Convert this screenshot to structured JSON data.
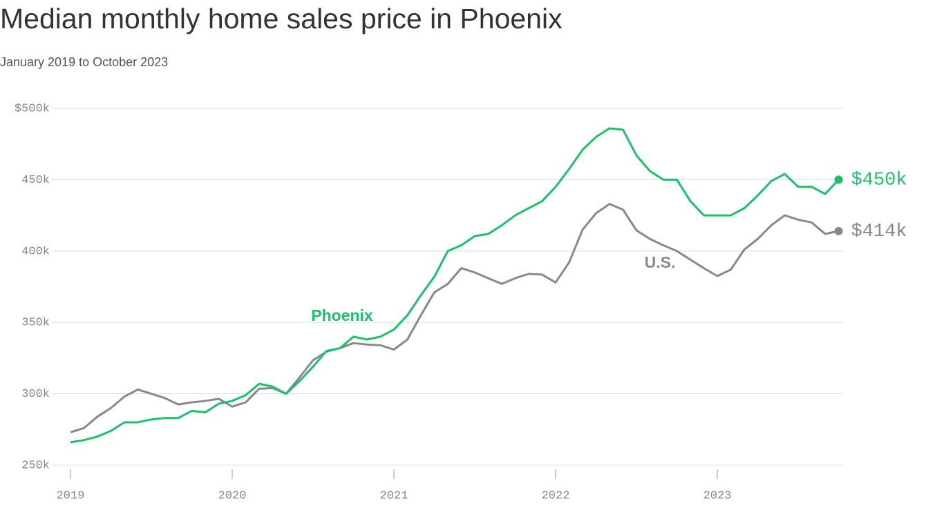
{
  "chart_data": {
    "type": "line",
    "title": "Median monthly home sales price in Phoenix",
    "subtitle": "January 2019 to October 2023",
    "x": [
      "2019-01",
      "2019-02",
      "2019-03",
      "2019-04",
      "2019-05",
      "2019-06",
      "2019-07",
      "2019-08",
      "2019-09",
      "2019-10",
      "2019-11",
      "2019-12",
      "2020-01",
      "2020-02",
      "2020-03",
      "2020-04",
      "2020-05",
      "2020-06",
      "2020-07",
      "2020-08",
      "2020-09",
      "2020-10",
      "2020-11",
      "2020-12",
      "2021-01",
      "2021-02",
      "2021-03",
      "2021-04",
      "2021-05",
      "2021-06",
      "2021-07",
      "2021-08",
      "2021-09",
      "2021-10",
      "2021-11",
      "2021-12",
      "2022-01",
      "2022-02",
      "2022-03",
      "2022-04",
      "2022-05",
      "2022-06",
      "2022-07",
      "2022-08",
      "2022-09",
      "2022-10",
      "2022-11",
      "2022-12",
      "2023-01",
      "2023-02",
      "2023-03",
      "2023-04",
      "2023-05",
      "2023-06",
      "2023-07",
      "2023-08",
      "2023-09",
      "2023-10"
    ],
    "series": [
      {
        "name": "Phoenix",
        "color": "#19c26b",
        "values": [
          266,
          267.5,
          270,
          274,
          280,
          280,
          282,
          283,
          283,
          288,
          287,
          293,
          295,
          299,
          307,
          305,
          300,
          309,
          319,
          330,
          332,
          340,
          338,
          340,
          345,
          355,
          369,
          382,
          400,
          404,
          410.5,
          412,
          418,
          425,
          430,
          435,
          445,
          457.5,
          471,
          480,
          486,
          485,
          467,
          456,
          450,
          450,
          435,
          425,
          425,
          425,
          430,
          439,
          449,
          454,
          445,
          445,
          440,
          450
        ],
        "value_labels": [
          null,
          null,
          null,
          null,
          null,
          null,
          null,
          null,
          null,
          null,
          null,
          null,
          null,
          null,
          null,
          null,
          null,
          null,
          null,
          null,
          null,
          null,
          null,
          null,
          null,
          null,
          null,
          null,
          null,
          null,
          null,
          null,
          null,
          null,
          null,
          null,
          null,
          null,
          null,
          null,
          null,
          null,
          null,
          null,
          null,
          null,
          null,
          null,
          null,
          null,
          null,
          null,
          null,
          null,
          null,
          null,
          null,
          "$450k"
        ]
      },
      {
        "name": "U.S.",
        "color": "#888888",
        "values": [
          273,
          276,
          284,
          290,
          298,
          303,
          300,
          297,
          292.5,
          294,
          295,
          296.5,
          291,
          294,
          303.5,
          304,
          300,
          311.5,
          323.5,
          329.5,
          332,
          335.5,
          334.5,
          334,
          331,
          338,
          355,
          371,
          377,
          388,
          385,
          381,
          377,
          381,
          384,
          383.5,
          378,
          392,
          415,
          426.5,
          433,
          429,
          414.5,
          408.5,
          404,
          400,
          394,
          388,
          382.5,
          387,
          401,
          408.5,
          418,
          425,
          422,
          420,
          412,
          414
        ],
        "value_labels": [
          null,
          null,
          null,
          null,
          null,
          null,
          null,
          null,
          null,
          null,
          null,
          null,
          null,
          null,
          null,
          null,
          null,
          null,
          null,
          null,
          null,
          null,
          null,
          null,
          null,
          null,
          null,
          null,
          null,
          null,
          null,
          null,
          null,
          null,
          null,
          null,
          null,
          null,
          null,
          null,
          null,
          null,
          null,
          null,
          null,
          null,
          null,
          null,
          null,
          null,
          null,
          null,
          null,
          null,
          null,
          null,
          null,
          "$414k"
        ]
      }
    ],
    "ylim": [
      250,
      500
    ],
    "yticks": [
      {
        "value": 250,
        "label": "250k"
      },
      {
        "value": 300,
        "label": "300k"
      },
      {
        "value": 350,
        "label": "350k"
      },
      {
        "value": 400,
        "label": "400k"
      },
      {
        "value": 450,
        "label": "450k"
      },
      {
        "value": 500,
        "label": "$500k"
      }
    ],
    "xticks": [
      {
        "value": "2019-01",
        "label": "2019"
      },
      {
        "value": "2020-01",
        "label": "2020"
      },
      {
        "value": "2021-01",
        "label": "2021"
      },
      {
        "value": "2022-01",
        "label": "2022"
      },
      {
        "value": "2023-01",
        "label": "2023"
      }
    ],
    "grid": true
  }
}
